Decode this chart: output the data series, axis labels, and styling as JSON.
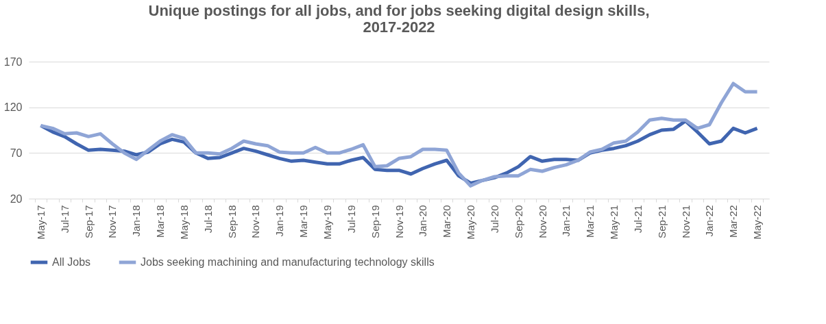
{
  "chart_data": {
    "type": "line",
    "title": [
      "Unique postings for all jobs, and for jobs seeking digital design skills,",
      "2017-2022"
    ],
    "categories": [
      "May-17",
      null,
      "Jul-17",
      null,
      "Sep-17",
      null,
      "Nov-17",
      null,
      "Jan-18",
      null,
      "Mar-18",
      null,
      "May-18",
      null,
      "Jul-18",
      null,
      "Sep-18",
      null,
      "Nov-18",
      null,
      "Jan-19",
      null,
      "Mar-19",
      null,
      "May-19",
      null,
      "Jul-19",
      null,
      "Sep-19",
      null,
      "Nov-19",
      null,
      "Jan-20",
      null,
      "Mar-20",
      null,
      "May-20",
      null,
      "Jul-20",
      null,
      "Sep-20",
      null,
      "Nov-20",
      null,
      "Jan-21",
      null,
      "Mar-21",
      null,
      "May-21",
      null,
      "Jul-21",
      null,
      "Sep-21",
      null,
      "Nov-21",
      null,
      "Jan-22",
      null,
      "Mar-22",
      null,
      "May-22"
    ],
    "series": [
      {
        "name": "All Jobs",
        "color": "#4065b0",
        "values": [
          100,
          93,
          88,
          80,
          73,
          74,
          73,
          72,
          68,
          71,
          80,
          85,
          82,
          70,
          64,
          65,
          70,
          75,
          72,
          68,
          64,
          61,
          62,
          60,
          58,
          58,
          62,
          65,
          52,
          51,
          51,
          47,
          53,
          58,
          62,
          45,
          37,
          40,
          43,
          48,
          55,
          66,
          61,
          63,
          63,
          62,
          70,
          73,
          75,
          78,
          83,
          90,
          95,
          96,
          105,
          93,
          80,
          83,
          97,
          92,
          97
        ]
      },
      {
        "name": "Jobs seeking machining and manufacturing technology skills",
        "color": "#8fa5d6",
        "values": [
          100,
          97,
          91,
          92,
          88,
          91,
          80,
          70,
          63,
          73,
          83,
          90,
          86,
          70,
          70,
          69,
          75,
          83,
          80,
          78,
          71,
          70,
          70,
          76,
          70,
          70,
          74,
          79,
          55,
          56,
          64,
          66,
          74,
          74,
          73,
          48,
          34,
          40,
          44,
          45,
          45,
          52,
          50,
          54,
          57,
          62,
          71,
          74,
          81,
          83,
          93,
          106,
          108,
          106,
          106,
          97,
          101,
          125,
          146,
          137,
          137
        ]
      }
    ],
    "ylim": [
      20,
      170
    ],
    "yticks": [
      20,
      70,
      120,
      170
    ],
    "grid": "y",
    "legend": "bottom",
    "line_style": "solid",
    "marker": "none"
  }
}
